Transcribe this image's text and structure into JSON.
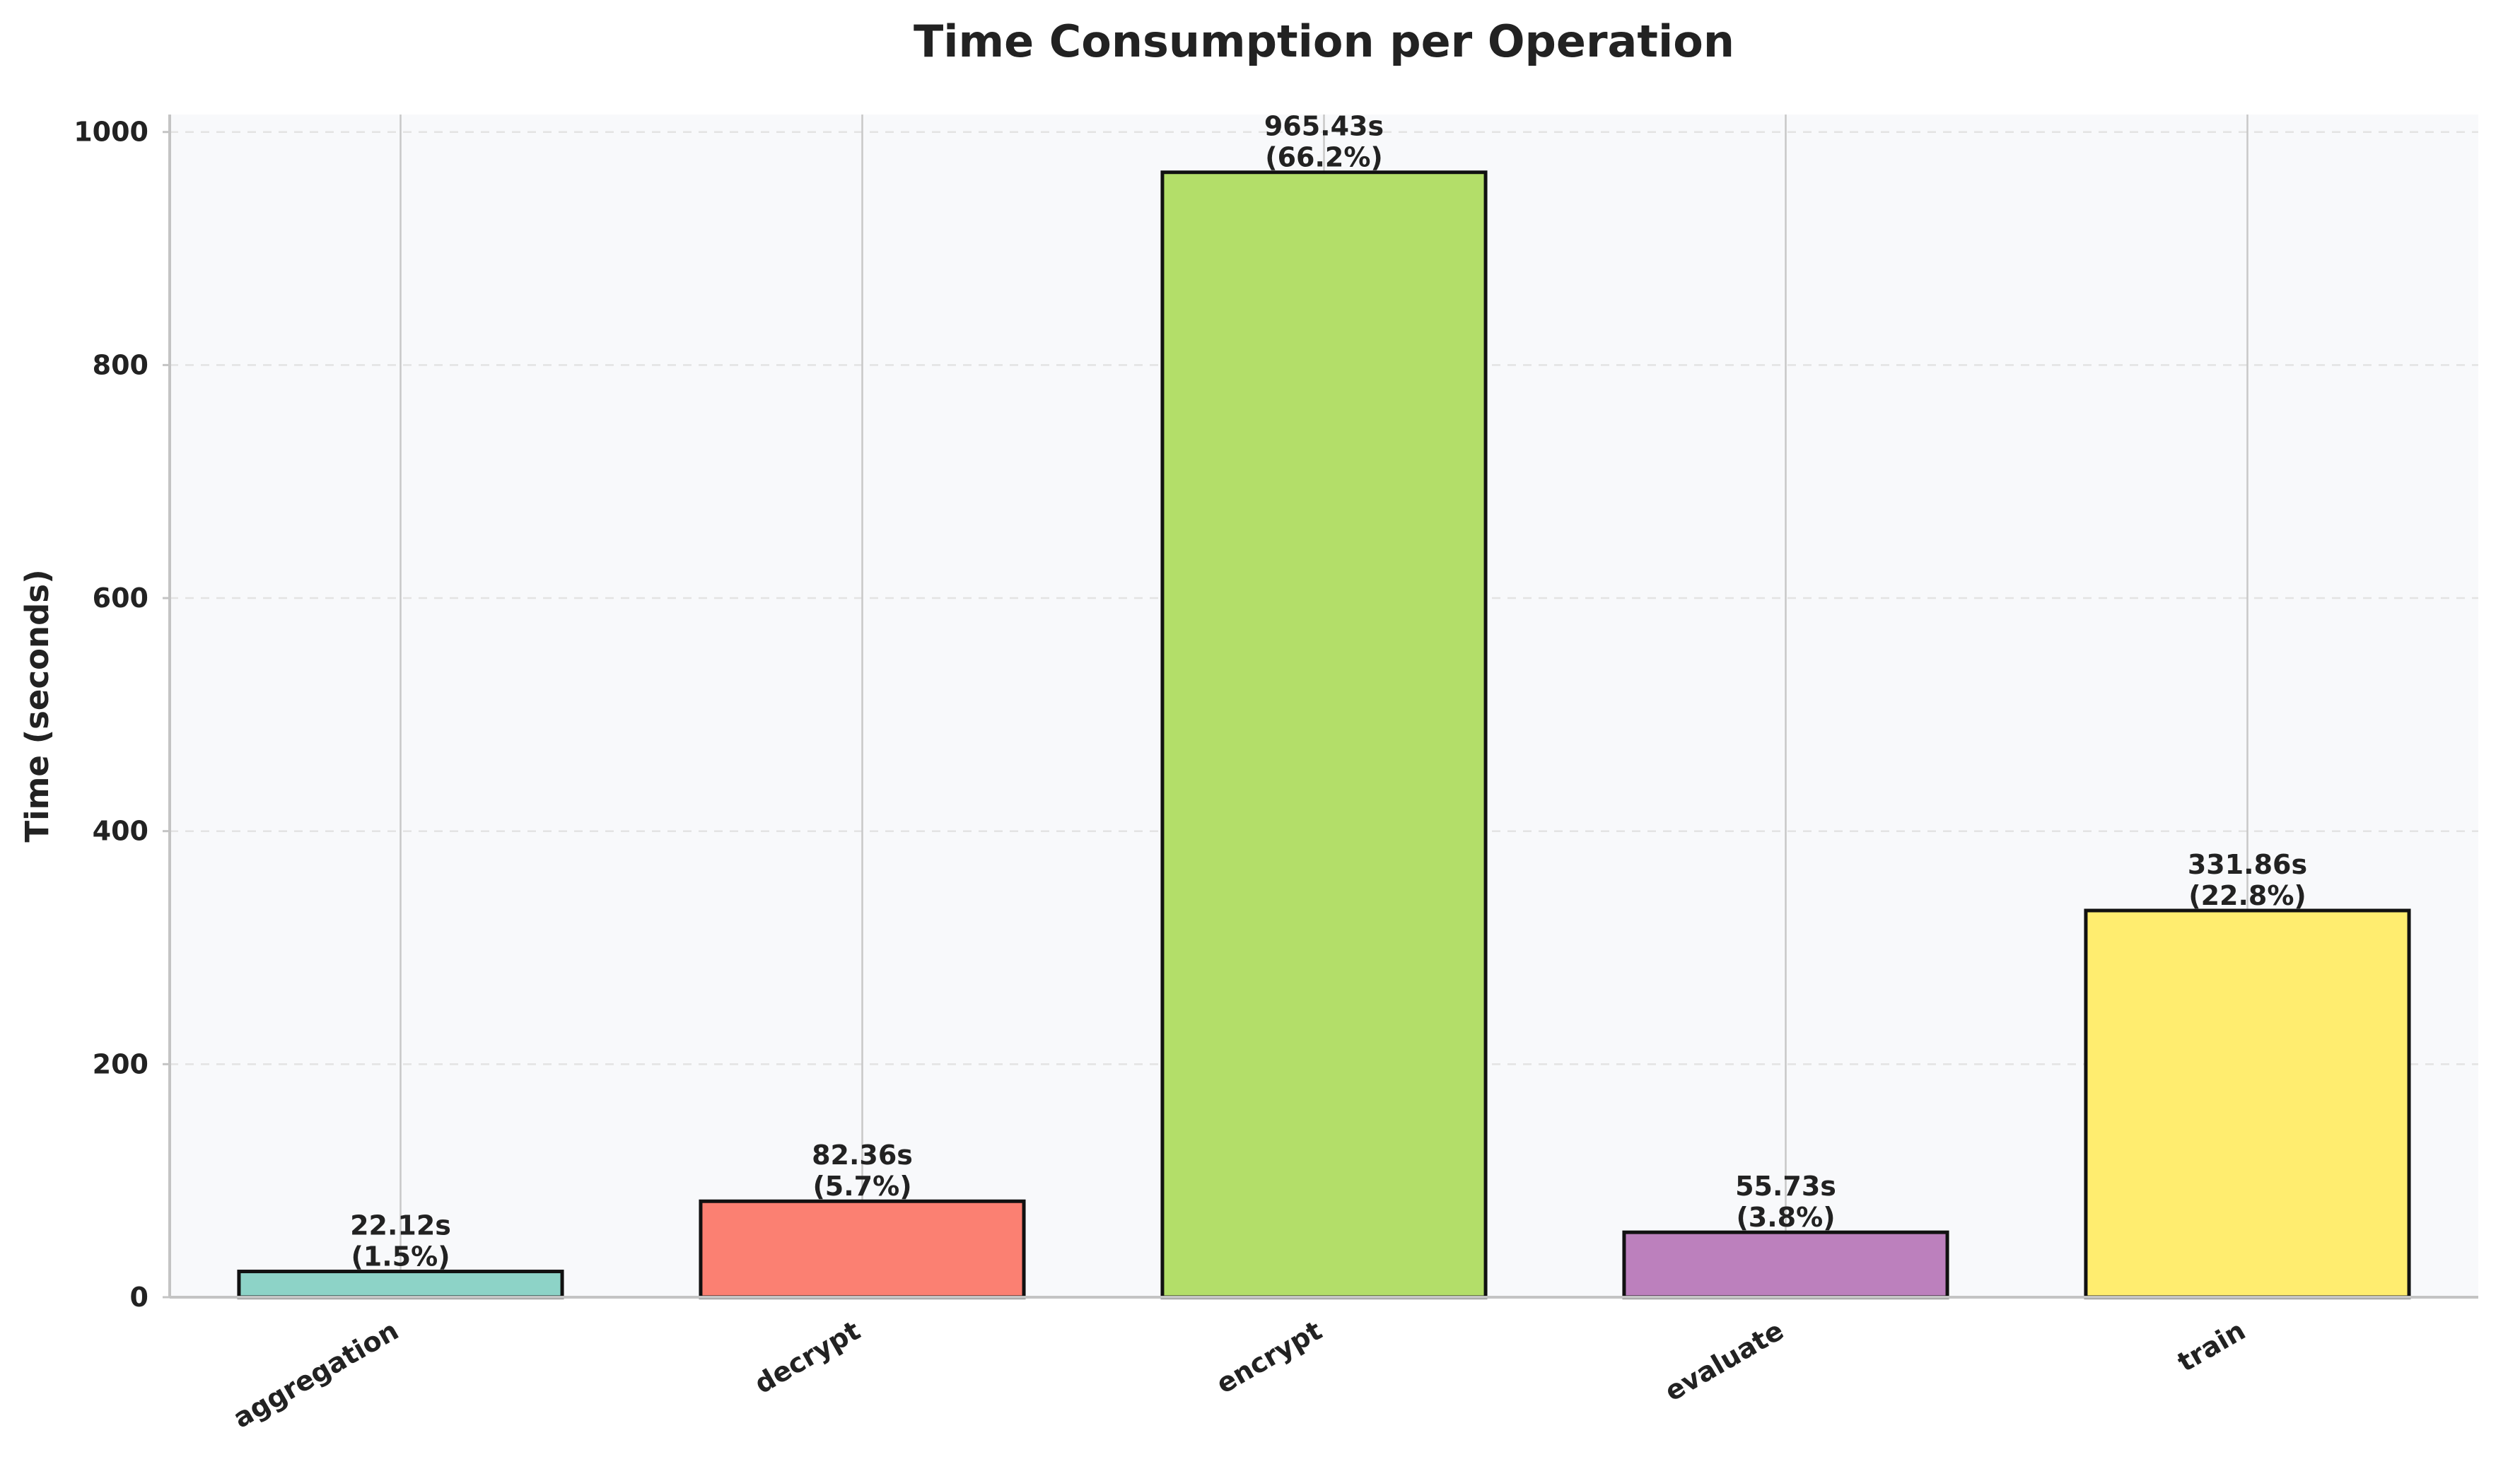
{
  "chart_data": {
    "type": "bar",
    "title": "Time Consumption per Operation",
    "xlabel": "",
    "ylabel": "Time (seconds)",
    "categories": [
      "aggregation",
      "decrypt",
      "encrypt",
      "evaluate",
      "train"
    ],
    "values": [
      22.12,
      82.36,
      965.43,
      55.73,
      331.86
    ],
    "value_labels": [
      "22.12s",
      "82.36s",
      "965.43s",
      "55.73s",
      "331.86s"
    ],
    "percent_labels": [
      "(1.5%)",
      "(5.7%)",
      "(66.2%)",
      "(3.8%)",
      "(22.8%)"
    ],
    "colors": [
      "#8dd3c7",
      "#fb8072",
      "#b3de69",
      "#bc80bd",
      "#ffed6f"
    ],
    "ylim": [
      0,
      1015
    ],
    "yticks": [
      0,
      200,
      400,
      600,
      800,
      1000
    ],
    "grid": "y-dashed, x-solid",
    "legend": "none"
  }
}
